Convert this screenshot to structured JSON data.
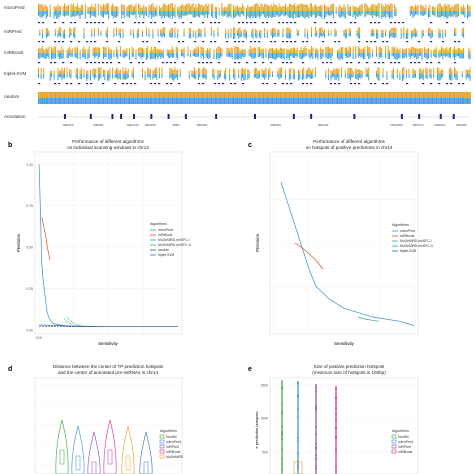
{
  "figure": {
    "panel_a": {
      "track_labels": [
        "microPred",
        "miRPred",
        "miRBoost",
        "triplet-SVM",
        "random",
        "Annotation"
      ],
      "annotation_labels": [
        "MIR379",
        "MIR301",
        "MIR1247",
        "MIR299",
        "MIR1",
        "MIR494",
        "MIR323",
        "MIR342",
        "MIR4309",
        "MIR770",
        "MIR203",
        "MIR380"
      ]
    },
    "panel_b": {
      "letter": "b",
      "title_line1": "Performance of different algorithms",
      "title_line2": "on individual scanning windows in chr14"
    },
    "panel_c": {
      "letter": "c",
      "title_line1": "Performance of different algorithms",
      "title_line2": "on hotspots of positive predictions in chr14"
    },
    "panel_d": {
      "letter": "d",
      "title_line1": "Distance between the center of TP prediction hotspots",
      "title_line2": "and the center of annotated pre-miRNAs in chr14"
    },
    "panel_e": {
      "letter": "e",
      "title_line1": "Size of positive prediction hotspots",
      "title_line2": "(minimum size of hotspots is 100bp)"
    }
  },
  "colors": {
    "orange": "#e8a020",
    "blue": "#3aa0d8",
    "navy": "#1a2a6e",
    "microPred": "#3a8ed0",
    "miRBoost": "#e05030",
    "MuGeMiRD": "#2aa890",
    "triplet": "#3a70b0",
    "random": "#505050",
    "purple": "#8a4ab0",
    "magenta": "#d03090",
    "green": "#40a040"
  },
  "chart_data": [
    {
      "panel": "b",
      "type": "line",
      "title": "Performance of different algorithms on individual scanning windows in chr14",
      "xlabel": "Sensitivity",
      "ylabel": "Precision",
      "xlim": [
        0,
        1
      ],
      "ylim": [
        0,
        1.05
      ],
      "x_ticks": [
        "0.00",
        "0.25",
        "0.50",
        "0.75",
        "1.00"
      ],
      "y_ticks": [
        "1.00",
        "0.75",
        "0.50",
        "0.25",
        "0.00"
      ],
      "legend_title": "Algorithms",
      "legend_position": "right",
      "series": [
        {
          "name": "microPred",
          "color": "#3a8ed0",
          "x": [
            0.0,
            0.005,
            0.01,
            0.015,
            0.02,
            0.03,
            0.04,
            0.05,
            0.06,
            0.08,
            0.1,
            0.15,
            0.2,
            0.3,
            0.5,
            0.7,
            0.9,
            1.0
          ],
          "y": [
            1.0,
            0.88,
            0.72,
            0.55,
            0.4,
            0.3,
            0.23,
            0.16,
            0.1,
            0.06,
            0.04,
            0.03,
            0.025,
            0.02,
            0.02,
            0.02,
            0.02,
            0.02
          ]
        },
        {
          "name": "miRBoost",
          "color": "#e05030",
          "x": [
            0.02,
            0.03,
            0.04,
            0.05,
            0.06,
            0.07,
            0.08
          ],
          "y": [
            0.68,
            0.64,
            0.6,
            0.56,
            0.5,
            0.46,
            0.42
          ]
        },
        {
          "name": "MuGeMiRD-mirSFC-I",
          "color": "#2aa890",
          "x": [
            0.2,
            0.22,
            0.25,
            0.28,
            0.3
          ],
          "y": [
            0.08,
            0.06,
            0.04,
            0.03,
            0.03
          ]
        },
        {
          "name": "MuGeMiRD-mirSFC-U",
          "color": "#2aa890",
          "x": [
            0.18,
            0.2,
            0.24
          ],
          "y": [
            0.07,
            0.05,
            0.035
          ]
        },
        {
          "name": "random",
          "color": "#505050",
          "x": [
            0.0,
            1.0
          ],
          "y": [
            0.02,
            0.02
          ]
        },
        {
          "name": "triplet-SVM",
          "color": "#3a70b0",
          "x": [
            0.0,
            0.2,
            0.5,
            1.0
          ],
          "y": [
            0.03,
            0.025,
            0.02,
            0.02
          ]
        }
      ]
    },
    {
      "panel": "c",
      "type": "line",
      "title": "Performance of different algorithms on hotspots of positive predictions in chr14",
      "xlabel": "Sensitivity",
      "ylabel": "Precision",
      "xlim": [
        0,
        1
      ],
      "ylim": [
        0,
        0.8
      ],
      "legend_title": "Algorithms",
      "legend_position": "right",
      "series": [
        {
          "name": "microPred",
          "color": "#3a8ed0",
          "x": [
            0.05,
            0.1,
            0.15,
            0.2,
            0.25,
            0.3,
            0.4,
            0.5,
            0.6,
            0.7,
            0.8,
            0.9,
            0.95,
            1.0
          ],
          "y": [
            0.68,
            0.58,
            0.48,
            0.38,
            0.28,
            0.2,
            0.14,
            0.1,
            0.08,
            0.06,
            0.05,
            0.04,
            0.03,
            0.02
          ]
        },
        {
          "name": "miRBoost",
          "color": "#e05030",
          "x": [
            0.15,
            0.2,
            0.25,
            0.3,
            0.35
          ],
          "y": [
            0.4,
            0.38,
            0.35,
            0.32,
            0.28
          ]
        },
        {
          "name": "triplet-SVM",
          "color": "#2aa890",
          "x": [
            0.6,
            0.65,
            0.7,
            0.75
          ],
          "y": [
            0.06,
            0.05,
            0.045,
            0.04
          ]
        }
      ]
    },
    {
      "panel": "d",
      "type": "violin",
      "legend_title": "Algorithms",
      "legend_position": "right",
      "groups": [
        "HuntMi",
        "microPred",
        "miRPred",
        "miRBoost",
        "MuGeMiRD",
        "triplet-SVM"
      ]
    },
    {
      "panel": "e",
      "type": "boxplot",
      "ylabel_fragment": "e prediction hotspots",
      "y_ticks": [
        "1500",
        "1000",
        "500"
      ],
      "legend_title": "Algorithms",
      "legend_position": "right",
      "groups": [
        "HuntMi",
        "microPred",
        "miRPred",
        "miRBoost"
      ]
    }
  ]
}
